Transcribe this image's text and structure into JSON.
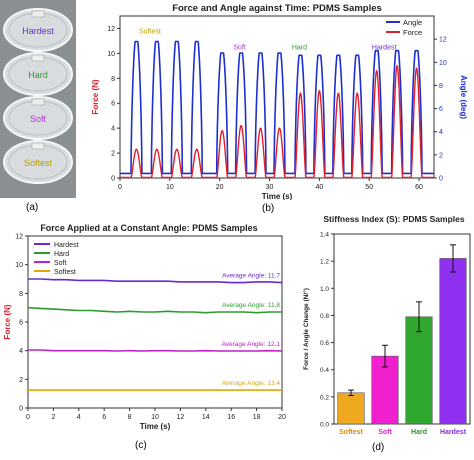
{
  "panel_labels": {
    "a": "(a)",
    "b": "(b)",
    "c": "(c)",
    "d": "(d)"
  },
  "photo": {
    "background": "#8a8f92",
    "discs": [
      {
        "label": "Hardest",
        "color": "#6a2ad0"
      },
      {
        "label": "Hard",
        "color": "#2e9a2e"
      },
      {
        "label": "Soft",
        "color": "#b034d8"
      },
      {
        "label": "Softest",
        "color": "#b8a000"
      }
    ]
  },
  "chart_data": [
    {
      "id": "b",
      "type": "line",
      "title": "Force and Angle against Time: PDMS Samples",
      "xlabel": "Time (s)",
      "ylabel": "Force (N)",
      "y2label": "Angle (deg)",
      "xlim": [
        0,
        63
      ],
      "xticks": [
        0,
        10,
        20,
        30,
        40,
        50,
        60
      ],
      "ylim": [
        0,
        13
      ],
      "yticks": [
        0,
        2,
        4,
        6,
        8,
        10,
        12
      ],
      "y2lim": [
        0,
        14
      ],
      "y2ticks": [
        0,
        2,
        4,
        6,
        8,
        10,
        12
      ],
      "legend": {
        "position": "top-right",
        "entries": [
          {
            "name": "Angle",
            "color": "#1f2fcf"
          },
          {
            "name": "Force",
            "color": "#e0202a"
          }
        ]
      },
      "annotations": [
        {
          "text": "Softest",
          "x": 6,
          "y": 11.6,
          "color": "#b8a000"
        },
        {
          "text": "Soft",
          "x": 24,
          "y": 10.3,
          "color": "#b034d8"
        },
        {
          "text": "Hard",
          "x": 36,
          "y": 10.3,
          "color": "#2e9a2e"
        },
        {
          "text": "Hardest",
          "x": 53,
          "y": 10.3,
          "color": "#6a2ad0"
        }
      ],
      "pulses": [
        {
          "t": 3.3,
          "w": 2.2,
          "angle": 11.8,
          "force": 2.3
        },
        {
          "t": 7.4,
          "w": 2.2,
          "angle": 11.8,
          "force": 2.3
        },
        {
          "t": 11.4,
          "w": 2.2,
          "angle": 11.8,
          "force": 2.3
        },
        {
          "t": 15.4,
          "w": 2.2,
          "angle": 11.8,
          "force": 2.3
        },
        {
          "t": 20.5,
          "w": 2.2,
          "angle": 10.8,
          "force": 3.8
        },
        {
          "t": 24.3,
          "w": 2.2,
          "angle": 10.8,
          "force": 4.2
        },
        {
          "t": 28.2,
          "w": 2.2,
          "angle": 10.8,
          "force": 4.0
        },
        {
          "t": 32.0,
          "w": 2.2,
          "angle": 10.8,
          "force": 4.0
        },
        {
          "t": 36.2,
          "w": 2.2,
          "angle": 10.6,
          "force": 6.8
        },
        {
          "t": 40.0,
          "w": 2.2,
          "angle": 10.6,
          "force": 7.0
        },
        {
          "t": 43.8,
          "w": 2.2,
          "angle": 10.6,
          "force": 6.8
        },
        {
          "t": 47.6,
          "w": 2.2,
          "angle": 10.6,
          "force": 6.8
        },
        {
          "t": 51.5,
          "w": 2.2,
          "angle": 11.0,
          "force": 8.6
        },
        {
          "t": 55.6,
          "w": 2.2,
          "angle": 11.0,
          "force": 9.0
        },
        {
          "t": 59.5,
          "w": 2.2,
          "angle": 11.0,
          "force": 8.8
        }
      ]
    },
    {
      "id": "c",
      "type": "line",
      "title": "Force Applied at a Constant Angle: PDMS Samples",
      "xlabel": "Time (s)",
      "ylabel": "Force (N)",
      "xlim": [
        0,
        20
      ],
      "xticks": [
        0,
        2,
        4,
        6,
        8,
        10,
        12,
        14,
        16,
        18,
        20
      ],
      "ylim": [
        0,
        12
      ],
      "yticks": [
        0,
        2,
        4,
        6,
        8,
        10,
        12
      ],
      "legend": {
        "position": "top-left"
      },
      "series": [
        {
          "name": "Hardest",
          "color": "#6a2ad0",
          "values": [
            9.0,
            9.0,
            8.95,
            8.95,
            8.9,
            8.9,
            8.9,
            8.85,
            8.85,
            8.85,
            8.85,
            8.85,
            8.8,
            8.8,
            8.8,
            8.8,
            8.75,
            8.75,
            8.8,
            8.8,
            8.75
          ],
          "annotation": "Average Angle: 11.7"
        },
        {
          "name": "Hard",
          "color": "#2e9a2e",
          "values": [
            7.0,
            6.95,
            6.9,
            6.85,
            6.8,
            6.8,
            6.75,
            6.7,
            6.75,
            6.7,
            6.7,
            6.75,
            6.7,
            6.7,
            6.65,
            6.7,
            6.7,
            6.7,
            6.65,
            6.7,
            6.7
          ],
          "annotation": "Average Angle: 11.8"
        },
        {
          "name": "Soft",
          "color": "#c020c8",
          "values": [
            4.05,
            4.05,
            4.0,
            4.0,
            4.0,
            4.0,
            4.0,
            3.98,
            4.0,
            3.98,
            4.0,
            4.0,
            3.98,
            3.98,
            4.0,
            3.98,
            3.98,
            3.98,
            3.98,
            4.0,
            3.98
          ],
          "annotation": "Average Angle: 12.1"
        },
        {
          "name": "Softest",
          "color": "#e0a800",
          "values": [
            1.25,
            1.25,
            1.25,
            1.25,
            1.25,
            1.25,
            1.25,
            1.25,
            1.25,
            1.25,
            1.25,
            1.25,
            1.25,
            1.25,
            1.25,
            1.25,
            1.25,
            1.25,
            1.25,
            1.25,
            1.25
          ],
          "annotation": "Average Angle: 13.4"
        }
      ]
    },
    {
      "id": "d",
      "type": "bar",
      "title": "Stiffness Index (S): PDMS Samples",
      "xlabel": "",
      "ylabel": "Force / Angle Change (N/°)",
      "ylim": [
        0,
        1.4
      ],
      "yticks": [
        0,
        0.2,
        0.4,
        0.6,
        0.8,
        1.0,
        1.2,
        1.4
      ],
      "categories": [
        "Softest",
        "Soft",
        "Hard",
        "Hardest"
      ],
      "values": [
        0.23,
        0.5,
        0.79,
        1.22
      ],
      "errors": [
        0.02,
        0.08,
        0.11,
        0.1
      ],
      "colors": [
        "#f0a820",
        "#f020d0",
        "#30a830",
        "#9030f0"
      ],
      "label_colors": [
        "#e08a00",
        "#e020c8",
        "#289628",
        "#8a2ae8"
      ]
    }
  ]
}
